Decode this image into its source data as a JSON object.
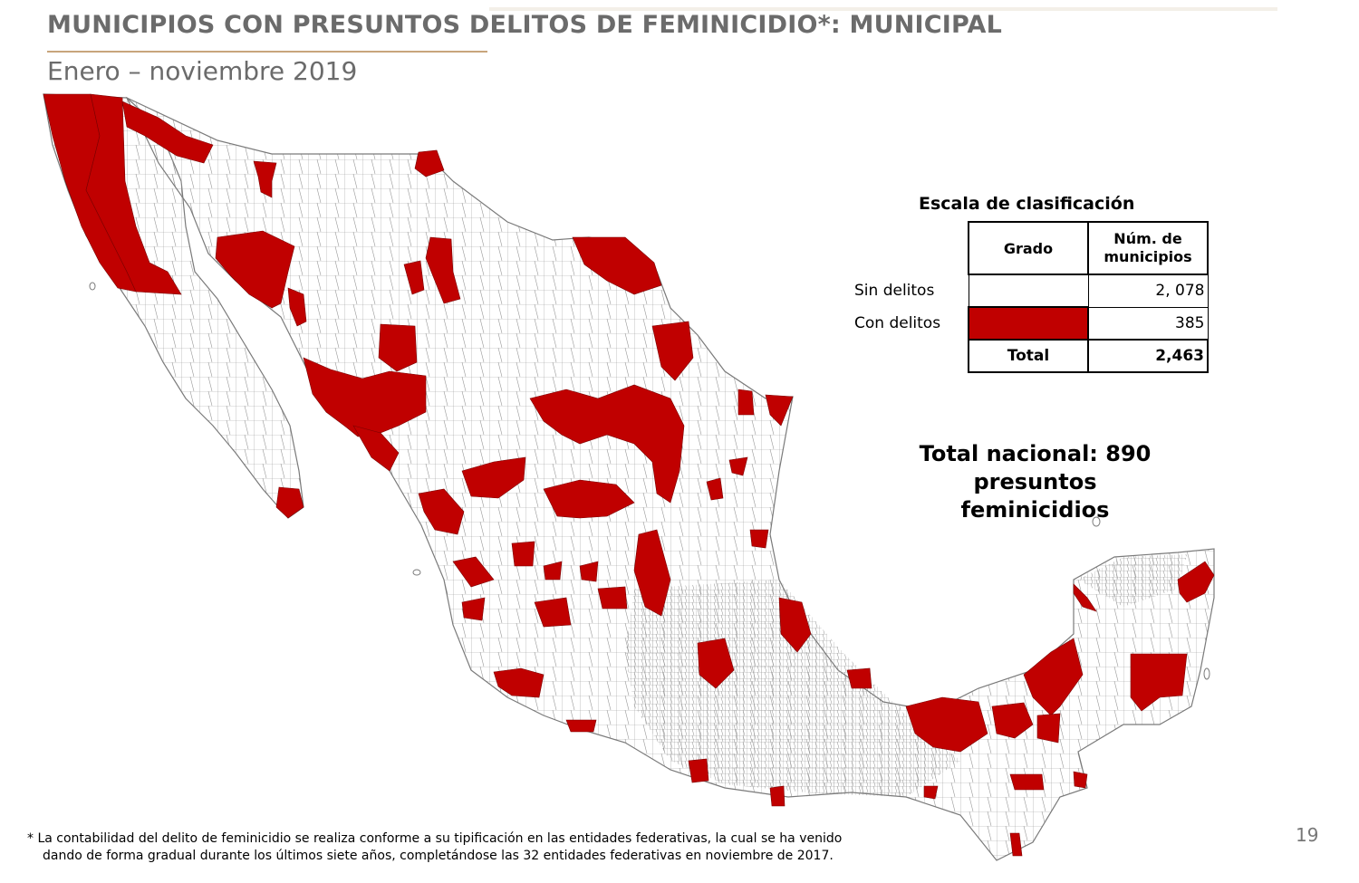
{
  "header": {
    "title": "MUNICIPIOS CON PRESUNTOS DELITOS DE FEMINICIDIO*: MUNICIPAL",
    "subtitle": "Enero – noviembre 2019"
  },
  "legend": {
    "title": "Escala de clasificación",
    "col_grado": "Grado",
    "col_num_line1": "Núm. de",
    "col_num_line2": "municipios",
    "rows": [
      {
        "label": "Sin delitos",
        "value": "2, 078",
        "color": "#ffffff"
      },
      {
        "label": "Con delitos",
        "value": "385",
        "color": "#c00000"
      }
    ],
    "total_label": "Total",
    "total_value": "2,463"
  },
  "national_total": {
    "line1": "Total nacional: 890",
    "line2": "presuntos feminicidios"
  },
  "footnote": {
    "line1": "* La contabilidad del delito de feminicidio se realiza conforme a su tipificación en las entidades federativas, la cual se ha venido",
    "line2": "dando de forma gradual durante los últimos siete años, completándose las 32 entidades federativas en noviembre de 2017."
  },
  "page_number": "19",
  "colors": {
    "highlight": "#c00000",
    "base": "#ffffff",
    "border": "#7a7a7a",
    "title_gray": "#6b6b6b",
    "accent_rule": "#c8a57c"
  }
}
